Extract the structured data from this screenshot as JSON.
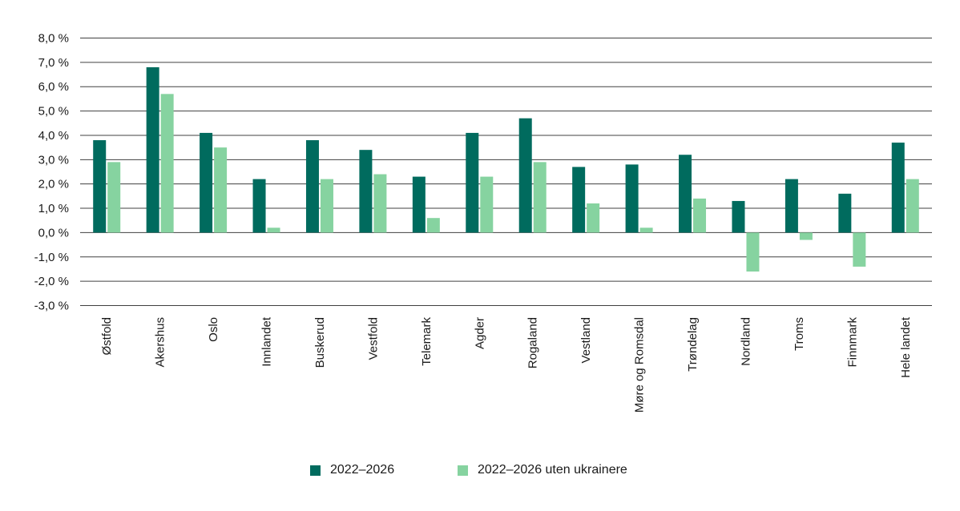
{
  "chart_data": {
    "type": "bar",
    "categories": [
      "Østfold",
      "Akershus",
      "Oslo",
      "Innlandet",
      "Buskerud",
      "Vestfold",
      "Telemark",
      "Agder",
      "Rogaland",
      "Vestland",
      "Møre og Romsdal",
      "Trøndelag",
      "Nordland",
      "Troms",
      "Finnmark",
      "Hele landet"
    ],
    "series": [
      {
        "name": "2022–2026",
        "color": "#006b5e",
        "values": [
          3.8,
          6.8,
          4.1,
          2.2,
          3.8,
          3.4,
          2.3,
          4.1,
          4.7,
          2.7,
          2.8,
          3.2,
          1.3,
          2.2,
          1.6,
          3.7
        ]
      },
      {
        "name": "2022–2026 uten ukrainere",
        "color": "#86d3a0",
        "values": [
          2.9,
          5.7,
          3.5,
          0.2,
          2.2,
          2.4,
          0.6,
          2.3,
          2.9,
          1.2,
          0.2,
          1.4,
          -1.6,
          -0.3,
          -1.4,
          2.2
        ]
      }
    ],
    "y_ticks": [
      "8,0 %",
      "7,0 %",
      "6,0 %",
      "5,0 %",
      "4,0 %",
      "3,0 %",
      "2,0 %",
      "1,0 %",
      "0,0 %",
      "-1,0 %",
      "-2,0 %",
      "-3,0 %"
    ],
    "ylim": [
      -3,
      8
    ],
    "y_step": 1,
    "grid": true,
    "legend_position": "bottom-center",
    "title": "",
    "xlabel": "",
    "ylabel": ""
  }
}
